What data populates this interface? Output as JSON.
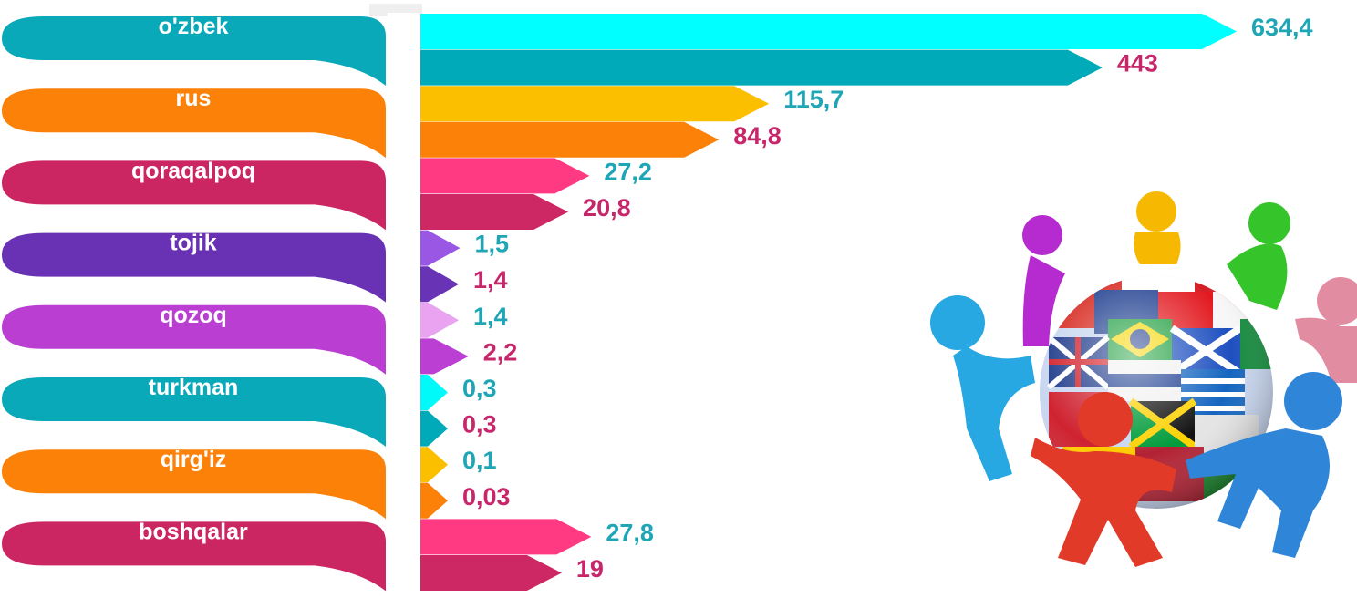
{
  "colors": {
    "value_label_a": "#1fa6b6",
    "value_label_b": "#c8266a",
    "separator": "#eeeeee"
  },
  "chart_data": {
    "type": "bar",
    "orientation": "horizontal",
    "title": "",
    "xlabel": "",
    "ylabel": "",
    "grid": false,
    "legend": "none",
    "categories": [
      "o'zbek",
      "rus",
      "qoraqalpoq",
      "tojik",
      "qozoq",
      "turkman",
      "qirg'iz",
      "boshqalar"
    ],
    "category_colors": [
      "#0aa9b9",
      "#fb8108",
      "#cc2662",
      "#6932b4",
      "#b93ed1",
      "#0aa9b9",
      "#fb8108",
      "#cc2662"
    ],
    "series": [
      {
        "values": [
          634.4,
          115.7,
          27.2,
          1.5,
          1.4,
          0.3,
          0.1,
          27.8
        ],
        "labels": [
          "634,4",
          "115,7",
          "27,2",
          "1,5",
          "1,4",
          "0,3",
          "0,1",
          "27,8"
        ],
        "colors": [
          "#00ffff",
          "#fcbf00",
          "#ff3a82",
          "#9a57e4",
          "#e9a3f1",
          "#00fafa",
          "#fcbf00",
          "#ff3a82"
        ]
      },
      {
        "values": [
          443,
          84.8,
          20.8,
          1.4,
          2.2,
          0.3,
          0.03,
          19
        ],
        "labels": [
          "443",
          "84,8",
          "20,8",
          "1,4",
          "2,2",
          "0,3",
          "0,03",
          "19"
        ],
        "colors": [
          "#00aab8",
          "#fb8108",
          "#cd2764",
          "#6833b5",
          "#bb3fd2",
          "#00aab8",
          "#fb8108",
          "#cd2764"
        ]
      }
    ]
  },
  "illustration": {
    "icon": "people-around-flag-globe-illustration"
  }
}
